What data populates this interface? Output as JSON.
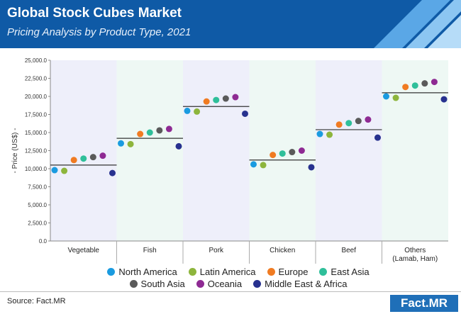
{
  "header": {
    "title": "Global Stock Cubes Market",
    "subtitle": "Pricing Analysis by Product Type, 2021"
  },
  "source": "Source: Fact.MR",
  "logo": "Fact.MR",
  "colors": {
    "header_bg": "#0f5aa6",
    "band_even": "#eeeffa",
    "band_odd": "#eef8f4"
  },
  "chart_data": {
    "type": "scatter",
    "ylabel": "- Price (US$) -",
    "ylim": [
      0,
      25000
    ],
    "yticks": [
      "0.0",
      "2,500.0",
      "5,000.0",
      "7,500.0",
      "10,000.0",
      "12,500.0",
      "15,000.0",
      "17,500.0",
      "20,000.0",
      "22,500.0",
      "25,000.0"
    ],
    "categories": [
      "Vegetable",
      "Fish",
      "Pork",
      "Chicken",
      "Beef",
      "Others"
    ],
    "category_sublabels": [
      "",
      "",
      "",
      "",
      "",
      "(Lamab, Ham)"
    ],
    "averages": [
      10500,
      14200,
      18600,
      11200,
      15400,
      20500
    ],
    "series": [
      {
        "name": "North America",
        "color": "#1a9be0",
        "values": [
          9800,
          13500,
          18000,
          10600,
          14800,
          20000
        ]
      },
      {
        "name": "Latin America",
        "color": "#8db53c",
        "values": [
          9700,
          13400,
          17900,
          10500,
          14700,
          19800
        ]
      },
      {
        "name": "Europe",
        "color": "#f07b22",
        "values": [
          11200,
          14800,
          19300,
          11900,
          16100,
          21300
        ]
      },
      {
        "name": "East Asia",
        "color": "#2fbf9a",
        "values": [
          11400,
          15000,
          19500,
          12100,
          16300,
          21500
        ]
      },
      {
        "name": "South Asia",
        "color": "#5a5a5a",
        "values": [
          11600,
          15300,
          19700,
          12300,
          16600,
          21800
        ]
      },
      {
        "name": "Oceania",
        "color": "#8e2a93",
        "values": [
          11800,
          15500,
          19900,
          12500,
          16800,
          22000
        ]
      },
      {
        "name": "Middle East & Africa",
        "color": "#27318f",
        "values": [
          9400,
          13100,
          17600,
          10200,
          14300,
          19600
        ]
      }
    ]
  }
}
